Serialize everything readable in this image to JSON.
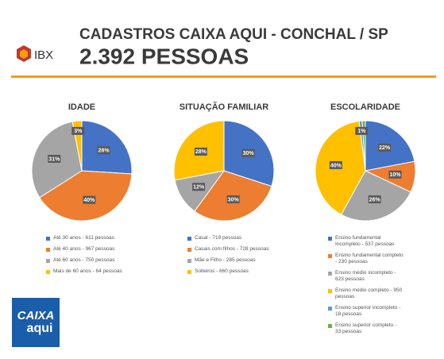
{
  "header": {
    "title": "CADASTROS CAIXA AQUI - CONCHAL / SP",
    "subtitle": "2.392 PESSOAS",
    "brand": "IBX",
    "logo_top": "CAIXA",
    "logo_bottom": "aqui"
  },
  "chart_data": [
    {
      "type": "pie",
      "title": "IDADE",
      "categories": [
        "Até 30 anos - 611 pessoas",
        "Até 40 anos - 967 pessoas",
        "Até 60 anos - 750 pessoas",
        "Mais de 60 anos - 64 pessoas"
      ],
      "values": [
        26,
        40,
        31,
        3
      ],
      "value_labels": [
        "26%",
        "40%",
        "31%",
        "3%"
      ],
      "colors": [
        "#4472c4",
        "#ed7d31",
        "#a5a5a5",
        "#ffc000"
      ]
    },
    {
      "type": "pie",
      "title": "SITUAÇÃO FAMILIAR",
      "categories": [
        "Casal - 719 pessoas",
        "Casais com filhos - 728 pessoas",
        "Mãe e Filho - 285 pessoas",
        "Solteiros - 660 pessoas"
      ],
      "values": [
        30,
        30,
        12,
        28
      ],
      "value_labels": [
        "30%",
        "30%",
        "12%",
        "28%"
      ],
      "colors": [
        "#4472c4",
        "#ed7d31",
        "#a5a5a5",
        "#ffc000"
      ]
    },
    {
      "type": "pie",
      "title": "ESCOLARIDADE",
      "categories": [
        "Ensino fundamental Incompleto - 537 pessoas",
        "Ensino fundamental completo - 230 pessoas",
        "Ensino médio incompleto - 623 pessoas",
        "Ensino médio completo - 950 pessoas",
        "Ensino superior incompleto - 18 pessoas",
        "Ensino superior completo - 33 pessoas"
      ],
      "values": [
        22,
        10,
        26,
        40,
        1,
        1
      ],
      "value_labels": [
        "22%",
        "10%",
        "26%",
        "40%",
        "1%",
        null
      ],
      "colors": [
        "#4472c4",
        "#ed7d31",
        "#a5a5a5",
        "#ffc000",
        "#5b9bd5",
        "#70ad47"
      ]
    }
  ]
}
